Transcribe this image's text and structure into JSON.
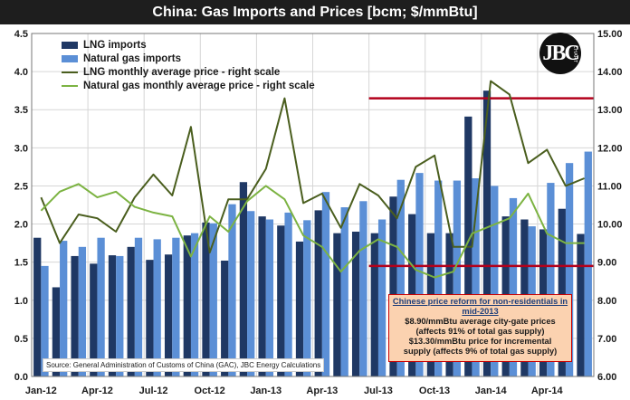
{
  "title": "China: Gas Imports and Prices [bcm; $/mmBtu]",
  "colors": {
    "lng_bar": "#1f3864",
    "gas_bar": "#5b8fd6",
    "lng_price": "#4a5e1e",
    "gas_price": "#7cb342",
    "threshold": "#b3001b",
    "grid": "#d6d6d6"
  },
  "legend": [
    {
      "label": "LNG imports",
      "kind": "bar",
      "color": "#1f3864"
    },
    {
      "label": "Natural gas imports",
      "kind": "bar",
      "color": "#5b8fd6"
    },
    {
      "label": "LNG monthly average price - right scale",
      "kind": "line",
      "color": "#4a5e1e"
    },
    {
      "label": "Natural gas monthly average price - right scale",
      "kind": "line",
      "color": "#7cb342"
    }
  ],
  "source": "Source:  General Administration of Customs of China (GAC), JBC Energy Calculations",
  "note": {
    "title": "Chinese price reform for non-residentials in mid-2013",
    "line1": "$8.90/mmBtu  average  city-gate prices",
    "line2": "(affects 91% of total gas supply)",
    "line3": "$13.30/mmBtu price for incremental",
    "line4": "supply (affects  9% of total gas supply)"
  },
  "logo": {
    "mark": "JBC",
    "text": "CHART"
  },
  "chart_data": {
    "type": "bar",
    "categories": [
      "Jan-12",
      "Feb-12",
      "Mar-12",
      "Apr-12",
      "May-12",
      "Jun-12",
      "Jul-12",
      "Aug-12",
      "Sep-12",
      "Oct-12",
      "Nov-12",
      "Dec-12",
      "Jan-13",
      "Feb-13",
      "Mar-13",
      "Apr-13",
      "May-13",
      "Jun-13",
      "Jul-13",
      "Aug-13",
      "Sep-13",
      "Oct-13",
      "Nov-13",
      "Dec-13",
      "Jan-14",
      "Feb-14",
      "Mar-14",
      "Apr-14",
      "May-14",
      "Jun-14"
    ],
    "x_tick_labels": [
      "Jan-12",
      "Apr-12",
      "Jul-12",
      "Oct-12",
      "Jan-13",
      "Apr-13",
      "Jul-13",
      "Oct-13",
      "Jan-14",
      "Apr-14"
    ],
    "x_tick_every": 3,
    "series": [
      {
        "name": "LNG imports",
        "axis": "left",
        "kind": "bar",
        "values": [
          1.82,
          1.17,
          1.58,
          1.48,
          1.59,
          1.7,
          1.53,
          1.6,
          1.85,
          2.02,
          1.52,
          2.55,
          2.1,
          1.98,
          1.77,
          2.18,
          1.88,
          1.9,
          1.88,
          2.36,
          2.13,
          1.88,
          1.88,
          3.41,
          3.75,
          2.1,
          2.06,
          1.93,
          2.2,
          1.87
        ]
      },
      {
        "name": "Natural gas imports",
        "axis": "left",
        "kind": "bar",
        "values": [
          1.45,
          1.78,
          1.7,
          1.82,
          1.58,
          1.82,
          1.8,
          1.82,
          1.88,
          2.01,
          2.26,
          2.17,
          2.06,
          2.15,
          2.05,
          2.42,
          2.22,
          2.3,
          2.06,
          2.58,
          2.67,
          2.57,
          2.57,
          2.6,
          2.5,
          2.34,
          1.97,
          2.54,
          2.8,
          2.95
        ]
      },
      {
        "name": "LNG monthly average price - right scale",
        "axis": "right",
        "kind": "line",
        "values": [
          10.7,
          9.5,
          10.25,
          10.15,
          9.8,
          10.7,
          11.3,
          10.75,
          12.55,
          9.25,
          10.65,
          10.65,
          11.45,
          13.3,
          10.55,
          10.8,
          9.9,
          11.05,
          10.75,
          10.15,
          11.5,
          11.8,
          9.4,
          9.4,
          13.75,
          13.4,
          11.6,
          11.95,
          11.0,
          11.2
        ]
      },
      {
        "name": "Natural gas monthly average price - right scale",
        "axis": "right",
        "kind": "line",
        "values": [
          10.35,
          10.85,
          11.05,
          10.7,
          10.85,
          10.45,
          10.3,
          10.2,
          9.15,
          10.2,
          9.8,
          10.6,
          11.0,
          10.65,
          9.7,
          9.4,
          8.75,
          9.3,
          9.6,
          9.4,
          8.8,
          8.6,
          8.75,
          9.75,
          9.95,
          10.15,
          10.8,
          9.75,
          9.5,
          9.5
        ]
      }
    ],
    "ylim_left": [
      0.0,
      4.5
    ],
    "ylim_right": [
      6.0,
      15.0
    ],
    "y_ticks_left": [
      "0.0",
      "0.5",
      "1.0",
      "1.5",
      "2.0",
      "2.5",
      "3.0",
      "3.5",
      "4.0",
      "4.5"
    ],
    "y_ticks_right": [
      "6.00",
      "7.00",
      "8.00",
      "9.00",
      "10.00",
      "11.00",
      "12.00",
      "13.00",
      "14.00",
      "15.00"
    ],
    "reference_lines": [
      {
        "axis": "right",
        "value": 13.3,
        "from_category": "Jul-13",
        "to_category": "Jun-14"
      },
      {
        "axis": "right",
        "value": 8.9,
        "from_category": "Jul-13",
        "to_category": "Jun-14"
      }
    ],
    "grid": true,
    "legend_position": "top-left"
  }
}
